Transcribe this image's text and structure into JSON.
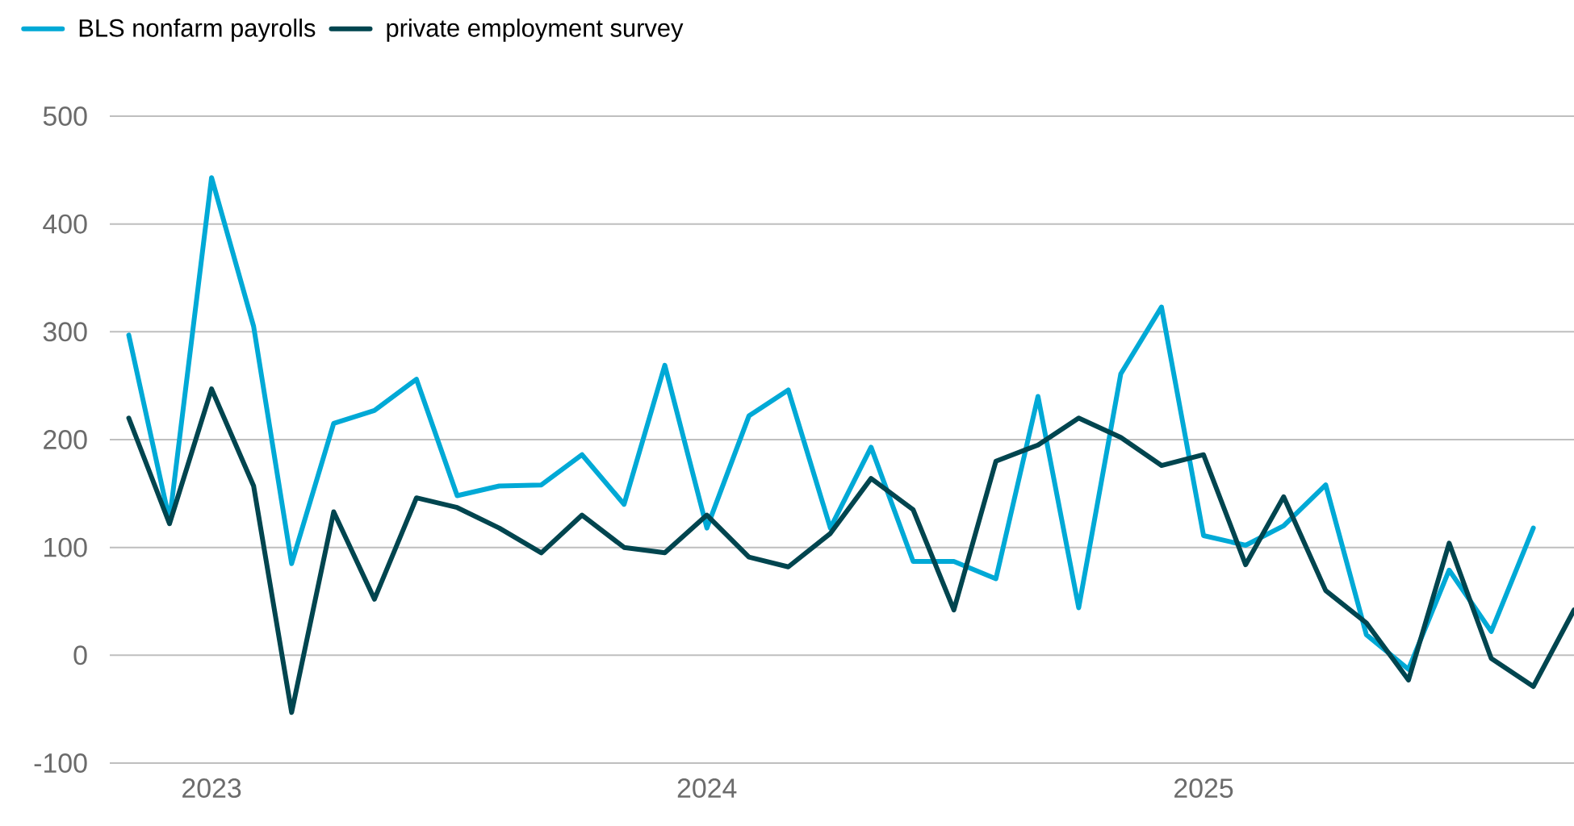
{
  "chart_data": {
    "type": "line",
    "x": [
      "2022-11",
      "2022-12",
      "2023-01",
      "2023-02",
      "2023-03",
      "2023-04",
      "2023-05",
      "2023-06",
      "2023-07",
      "2023-08",
      "2023-09",
      "2023-10",
      "2023-11",
      "2023-12",
      "2024-01",
      "2024-02",
      "2024-03",
      "2024-04",
      "2024-05",
      "2024-06",
      "2024-07",
      "2024-08",
      "2024-09",
      "2024-10",
      "2024-11",
      "2024-12",
      "2025-01",
      "2025-02",
      "2025-03",
      "2025-04",
      "2025-05",
      "2025-06",
      "2025-07",
      "2025-08",
      "2025-09",
      "2025-10"
    ],
    "series": [
      {
        "name": "BLS nonfarm payrolls",
        "color": "#00a9d6",
        "values": [
          297,
          125,
          443,
          305,
          85,
          215,
          227,
          256,
          148,
          157,
          158,
          186,
          140,
          269,
          118,
          222,
          246,
          118,
          193,
          87,
          87,
          71,
          240,
          44,
          261,
          323,
          111,
          102,
          120,
          158,
          19,
          -13,
          79,
          22,
          118,
          null
        ]
      },
      {
        "name": "private employment survey",
        "color": "#00454f",
        "values": [
          220,
          122,
          247,
          157,
          -53,
          133,
          52,
          146,
          137,
          118,
          95,
          130,
          100,
          95,
          130,
          91,
          82,
          113,
          164,
          135,
          42,
          180,
          195,
          220,
          202,
          176,
          186,
          84,
          147,
          60,
          30,
          -23,
          104,
          -3,
          -29,
          42
        ]
      }
    ],
    "xlim": [
      "2022-10-18",
      "2025-10-01"
    ],
    "xticks": [
      {
        "value": "2023-01-01",
        "label": "2023"
      },
      {
        "value": "2024-01-01",
        "label": "2024"
      },
      {
        "value": "2025-01-01",
        "label": "2025"
      }
    ],
    "ylim": [
      -100,
      500
    ],
    "yticks": [
      -100,
      0,
      100,
      200,
      300,
      400,
      500
    ],
    "grid": "y",
    "legend": "top left",
    "marker": "none",
    "line_style": "solid"
  }
}
